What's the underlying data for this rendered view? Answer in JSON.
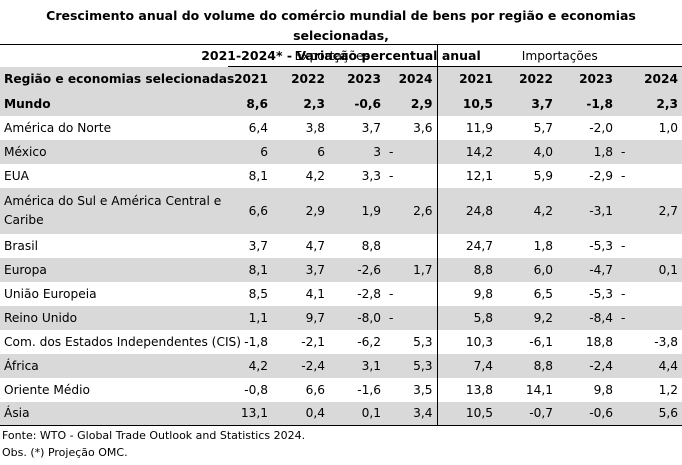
{
  "title_line1": "Crescimento anual do volume do comércio mundial de bens por região e economias selecionadas,",
  "title_line2": "2021-2024* - Variação percentual anual",
  "group_exports": "Exportações",
  "group_imports": "Importações",
  "header_label": "Região e economias selecionadas",
  "years": [
    "2021",
    "2022",
    "2023",
    "2024"
  ],
  "rows": [
    {
      "label": "Mundo",
      "exp": [
        "8,6",
        "2,3",
        "-0,6",
        "2,9"
      ],
      "imp": [
        "10,5",
        "3,7",
        "-1,8",
        "2,3"
      ]
    },
    {
      "label": "América do Norte",
      "exp": [
        "6,4",
        "3,8",
        "3,7",
        "3,6"
      ],
      "imp": [
        "11,9",
        "5,7",
        "-2,0",
        "1,0"
      ]
    },
    {
      "label": "México",
      "exp": [
        "6",
        "6",
        "3",
        "-"
      ],
      "imp": [
        "14,2",
        "4,0",
        "1,8",
        "-"
      ]
    },
    {
      "label": "EUA",
      "exp": [
        "8,1",
        "4,2",
        "3,3",
        "-"
      ],
      "imp": [
        "12,1",
        "5,9",
        "-2,9",
        "-"
      ]
    },
    {
      "label": "América do Sul e América Central e Caribe",
      "exp": [
        "6,6",
        "2,9",
        "1,9",
        "2,6"
      ],
      "imp": [
        "24,8",
        "4,2",
        "-3,1",
        "2,7"
      ]
    },
    {
      "label": "Brasil",
      "exp": [
        "3,7",
        "4,7",
        "8,8",
        ""
      ],
      "imp": [
        "24,7",
        "1,8",
        "-5,3",
        "-"
      ]
    },
    {
      "label": "Europa",
      "exp": [
        "8,1",
        "3,7",
        "-2,6",
        "1,7"
      ],
      "imp": [
        "8,8",
        "6,0",
        "-4,7",
        "0,1"
      ]
    },
    {
      "label": "União Europeia",
      "exp": [
        "8,5",
        "4,1",
        "-2,8",
        "-"
      ],
      "imp": [
        "9,8",
        "6,5",
        "-5,3",
        "-"
      ]
    },
    {
      "label": "Reino Unido",
      "exp": [
        "1,1",
        "9,7",
        "-8,0",
        "-"
      ],
      "imp": [
        "5,8",
        "9,2",
        "-8,4",
        "-"
      ]
    },
    {
      "label": "Com. dos Estados Independentes (CIS)",
      "exp": [
        "-1,8",
        "-2,1",
        "-6,2",
        "5,3"
      ],
      "imp": [
        "10,3",
        "-6,1",
        "18,8",
        "-3,8"
      ]
    },
    {
      "label": "África",
      "exp": [
        "4,2",
        "-2,4",
        "3,1",
        "5,3"
      ],
      "imp": [
        "7,4",
        "8,8",
        "-2,4",
        "4,4"
      ]
    },
    {
      "label": "Oriente Médio",
      "exp": [
        "-0,8",
        "6,6",
        "-1,6",
        "3,5"
      ],
      "imp": [
        "13,8",
        "14,1",
        "9,8",
        "1,2"
      ]
    },
    {
      "label": "Ásia",
      "exp": [
        "13,1",
        "0,4",
        "0,1",
        "3,4"
      ],
      "imp": [
        "10,5",
        "-0,7",
        "-0,6",
        "5,6"
      ]
    }
  ],
  "footnote_source": "Fonte: WTO - Global Trade Outlook and Statistics 2024.",
  "footnote_obs": "Obs. (*) Projeção OMC."
}
